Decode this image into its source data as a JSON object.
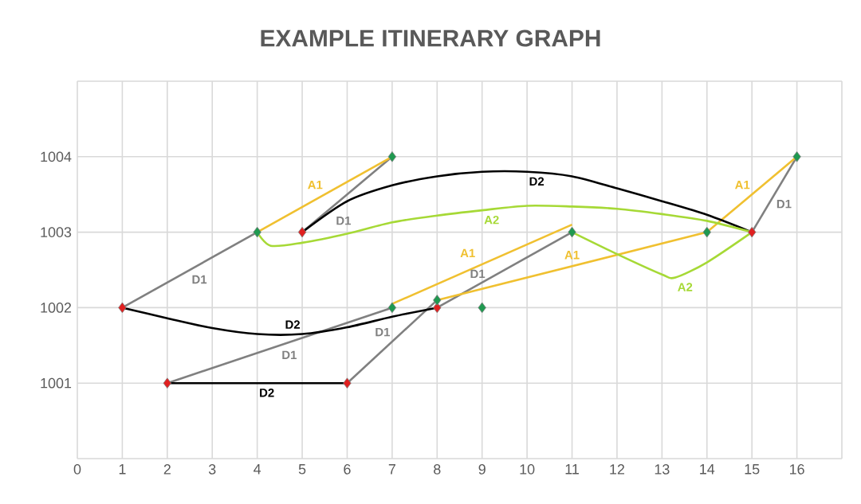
{
  "chart_data": {
    "type": "line",
    "title": "EXAMPLE ITINERARY GRAPH",
    "xlim": [
      0,
      17
    ],
    "ylim": [
      1000,
      1005
    ],
    "xticks": [
      0,
      1,
      2,
      3,
      4,
      5,
      6,
      7,
      8,
      9,
      10,
      11,
      12,
      13,
      14,
      15,
      16,
      {
        "value": 17,
        "label": null
      }
    ],
    "yticks": [
      {
        "value": 1000,
        "label": null
      },
      1001,
      1002,
      1003,
      1004,
      {
        "value": 1005,
        "label": null
      }
    ],
    "grid": true,
    "legend": false,
    "marker": "none",
    "line_style": "solid",
    "series": [
      {
        "name": "D1",
        "color": "#808080",
        "x": [
          1,
          4
        ],
        "values": [
          1002,
          1003
        ]
      },
      {
        "name": "D1",
        "color": "#808080",
        "x": [
          5,
          7
        ],
        "values": [
          1003,
          1004
        ]
      },
      {
        "name": "D1",
        "color": "#808080",
        "x": [
          2,
          7
        ],
        "values": [
          1001,
          1002
        ]
      },
      {
        "name": "D1",
        "color": "#808080",
        "x": [
          6,
          8
        ],
        "values": [
          1001,
          1002.1
        ]
      },
      {
        "name": "D1",
        "color": "#808080",
        "x": [
          8,
          11
        ],
        "values": [
          1002,
          1003
        ]
      },
      {
        "name": "D1",
        "color": "#808080",
        "x": [
          15,
          16
        ],
        "values": [
          1003,
          1004
        ]
      },
      {
        "name": "A1",
        "color": "#f0c030",
        "x": [
          4,
          7
        ],
        "values": [
          1003,
          1004
        ]
      },
      {
        "name": "A1",
        "color": "#f0c030",
        "x": [
          7,
          11
        ],
        "values": [
          1002.05,
          1003.1
        ]
      },
      {
        "name": "A1",
        "color": "#f0c030",
        "x": [
          8,
          14
        ],
        "values": [
          1002.1,
          1003
        ]
      },
      {
        "name": "A1",
        "color": "#f0c030",
        "x": [
          14,
          16
        ],
        "values": [
          1003,
          1004
        ]
      },
      {
        "name": "D2",
        "color": "#000000",
        "x": [
          1,
          2,
          3,
          4,
          5,
          6,
          7,
          8
        ],
        "values": [
          1002,
          1001.86,
          1001.73,
          1001.65,
          1001.65,
          1001.74,
          1001.88,
          1002
        ]
      },
      {
        "name": "D2",
        "color": "#000000",
        "x": [
          2,
          6
        ],
        "values": [
          1001,
          1001
        ]
      },
      {
        "name": "D2",
        "color": "#000000",
        "x": [
          5,
          6,
          7,
          8,
          9,
          10,
          11,
          12,
          13,
          14,
          15
        ],
        "values": [
          1003,
          1003.41,
          1003.62,
          1003.74,
          1003.8,
          1003.8,
          1003.74,
          1003.58,
          1003.41,
          1003.23,
          1003
        ]
      },
      {
        "name": "A2",
        "color": "#a6d936",
        "x": [
          4,
          4.3,
          5,
          6,
          7,
          8,
          9,
          10,
          11,
          12,
          13,
          14,
          15
        ],
        "values": [
          1003,
          1002.82,
          1002.86,
          1002.98,
          1003.13,
          1003.22,
          1003.29,
          1003.35,
          1003.34,
          1003.31,
          1003.24,
          1003.15,
          1003
        ]
      },
      {
        "name": "A2",
        "color": "#a6d936",
        "x": [
          11,
          12,
          13,
          13.3,
          14,
          15
        ],
        "values": [
          1003,
          1002.71,
          1002.44,
          1002.4,
          1002.6,
          1003
        ]
      },
      {
        "type": "scatter",
        "marker": "diamond",
        "color": "#e02020",
        "x": [
          1,
          2,
          5,
          6,
          8,
          15
        ],
        "values": [
          1002,
          1001,
          1003,
          1001,
          1002,
          1003
        ]
      },
      {
        "type": "scatter",
        "marker": "diamond",
        "color": "#1f9950",
        "x": [
          4,
          7,
          7,
          8,
          9,
          11,
          14,
          16
        ],
        "values": [
          1003,
          1004,
          1002,
          1002.1,
          1002,
          1003,
          1003,
          1004
        ]
      }
    ]
  }
}
